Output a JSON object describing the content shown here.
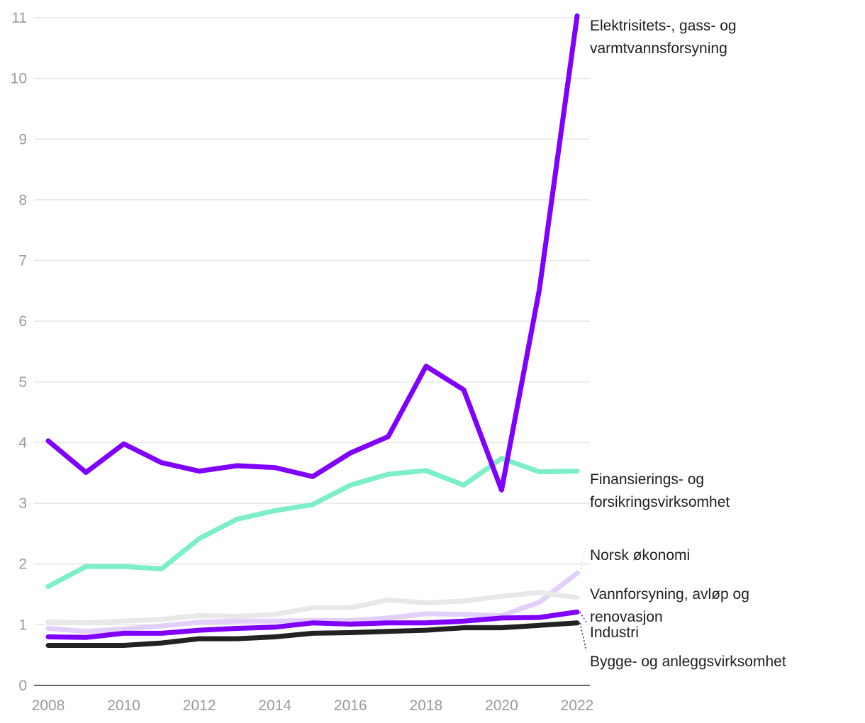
{
  "chart_data": {
    "type": "line",
    "title": "",
    "xlabel": "",
    "ylabel": "",
    "x": [
      2008,
      2009,
      2010,
      2011,
      2012,
      2013,
      2014,
      2015,
      2016,
      2017,
      2018,
      2019,
      2020,
      2021,
      2022
    ],
    "xticks": [
      "2008",
      "2010",
      "2012",
      "2014",
      "2016",
      "2018",
      "2020",
      "2022"
    ],
    "yticks": [
      "0",
      "1",
      "2",
      "3",
      "4",
      "5",
      "6",
      "7",
      "8",
      "9",
      "10",
      "11"
    ],
    "ylim": [
      0,
      11
    ],
    "grid": true,
    "legend": "direct labels at right end of lines",
    "series": [
      {
        "name": "Norsk økonomi",
        "label_lines": [
          "Norsk økonomi"
        ],
        "color": "#e3cffb",
        "values": [
          0.94,
          0.89,
          0.93,
          0.98,
          1.04,
          1.06,
          1.06,
          1.07,
          1.07,
          1.11,
          1.18,
          1.17,
          1.15,
          1.37,
          1.85
        ]
      },
      {
        "name": "Vannforsyning, avløp og renovasjon",
        "label_lines": [
          "Vannforsyning, avløp og",
          "renovasjon"
        ],
        "color": "#e8e8e8",
        "values": [
          1.05,
          1.03,
          1.06,
          1.09,
          1.15,
          1.14,
          1.17,
          1.28,
          1.28,
          1.41,
          1.36,
          1.39,
          1.47,
          1.53,
          1.45
        ]
      },
      {
        "name": "Finansierings- og forsikringsvirksomhet",
        "label_lines": [
          "Finansierings- og",
          "forsikringsvirksomhet"
        ],
        "color": "#7cefc7",
        "values": [
          1.63,
          1.96,
          1.96,
          1.92,
          2.42,
          2.74,
          2.88,
          2.98,
          3.3,
          3.48,
          3.54,
          3.3,
          3.74,
          3.52,
          3.53
        ]
      },
      {
        "name": "Bygge- og anleggsvirksomhet",
        "label_lines": [
          "Bygge- og anleggsvirksomhet"
        ],
        "color": "#222222",
        "values": [
          0.66,
          0.66,
          0.66,
          0.7,
          0.77,
          0.77,
          0.8,
          0.86,
          0.87,
          0.89,
          0.91,
          0.95,
          0.95,
          0.99,
          1.03
        ]
      },
      {
        "name": "Industri",
        "label_lines": [
          "Industri"
        ],
        "color": "#7f00ff",
        "values": [
          0.8,
          0.79,
          0.86,
          0.86,
          0.91,
          0.94,
          0.96,
          1.03,
          1.01,
          1.03,
          1.03,
          1.06,
          1.11,
          1.12,
          1.21
        ]
      },
      {
        "name": "Elektrisitets-, gass- og varmtvannsforsyning",
        "label_lines": [
          "Elektrisitets-, gass- og",
          "varmtvannsforsyning"
        ],
        "color": "#7f00ff",
        "values": [
          4.03,
          3.51,
          3.98,
          3.67,
          3.53,
          3.62,
          3.59,
          3.44,
          3.83,
          4.1,
          5.26,
          4.87,
          3.22,
          6.52,
          11.03
        ]
      }
    ]
  }
}
